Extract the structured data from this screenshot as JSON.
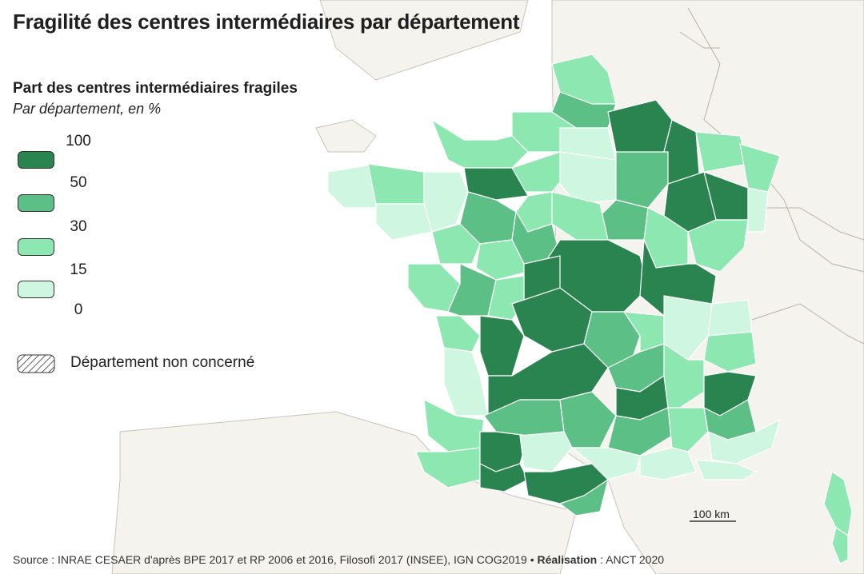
{
  "title": "Fragilité des centres intermédiaires par département",
  "legend": {
    "title": "Part des centres intermédiaires fragiles",
    "subtitle": "Par département, en %",
    "breaks": [
      "100",
      "50",
      "30",
      "15",
      "0"
    ],
    "classes": [
      {
        "range": "50-100",
        "color": "#2a8450"
      },
      {
        "range": "30-50",
        "color": "#5cbf85"
      },
      {
        "range": "15-30",
        "color": "#8de7b0"
      },
      {
        "range": "0-15",
        "color": "#cff6e0"
      }
    ],
    "not_concerned_label": "Département non concerné"
  },
  "scale_bar": {
    "label": "100 km"
  },
  "source": {
    "prefix": "Source",
    "text": " : INRAE CESAER d'après BPE 2017 et RP 2006 et 2016, Filosofi 2017 (INSEE), IGN COG2019 • ",
    "credit_label": "Réalisation",
    "credit_text": " : ANCT 2020"
  },
  "colors": {
    "land": "#f5f3ee",
    "sea": "#ffffff",
    "border": "#ffffff"
  }
}
